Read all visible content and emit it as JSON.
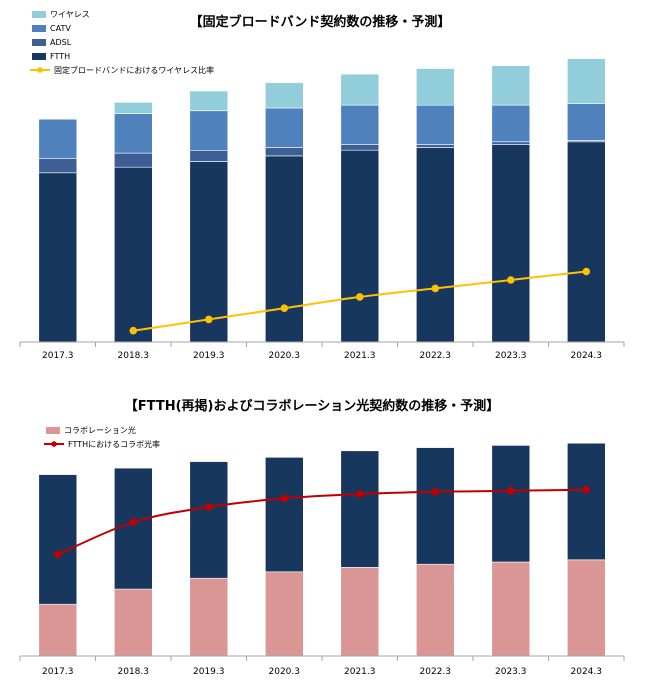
{
  "chart_data": [
    {
      "type": "bar",
      "stacked": true,
      "title": "【固定ブロードバンド契約数の推移・予測】",
      "categories": [
        "2017.3",
        "2018.3",
        "2019.3",
        "2020.3",
        "2021.3",
        "2022.3",
        "2023.3",
        "2024.3"
      ],
      "ylim": [
        0,
        100
      ],
      "y_axis_visible": false,
      "series": [
        {
          "name": "FTTH",
          "color": "#17375e",
          "values": [
            60,
            62,
            64,
            66,
            68,
            69,
            70,
            71
          ]
        },
        {
          "name": "ADSL",
          "color": "#3d5f96",
          "values": [
            5,
            5,
            4,
            3,
            2,
            1,
            1,
            0.5
          ]
        },
        {
          "name": "CATV",
          "color": "#4f81bd",
          "values": [
            14,
            14,
            14,
            14,
            14,
            14,
            13,
            13
          ]
        },
        {
          "name": "ワイヤレス",
          "color": "#92cddc",
          "values": [
            0,
            4,
            7,
            9,
            11,
            13,
            14,
            16
          ]
        }
      ],
      "line": {
        "name": "固定ブロードバンドにおけるワイヤレス比率",
        "color": "#ffc000",
        "values": [
          null,
          4,
          8,
          12,
          16,
          19,
          22,
          25
        ],
        "ylim": [
          0,
          100
        ]
      },
      "legend": [
        "ワイヤレス",
        "CATV",
        "ADSL",
        "FTTH",
        "固定ブロードバンドにおけるワイヤレス比率"
      ],
      "legend_position": "top-left"
    },
    {
      "type": "bar",
      "stacked": true,
      "title": "【FTTH(再掲)およびコラボレーション光契約数の推移・予測】",
      "categories": [
        "2017.3",
        "2018.3",
        "2019.3",
        "2020.3",
        "2021.3",
        "2022.3",
        "2023.3",
        "2024.3"
      ],
      "ylim": [
        0,
        100
      ],
      "y_axis_visible": false,
      "series": [
        {
          "name": "コラボレーション光",
          "color": "#da9694",
          "values": [
            24,
            31,
            36,
            39,
            41,
            42.5,
            43.5,
            44.5
          ]
        },
        {
          "name": "FTTH",
          "color": "#17375e",
          "values": [
            60,
            56,
            54,
            53,
            54,
            54,
            54,
            54
          ]
        }
      ],
      "line": {
        "name": "FTTHにおけるコラボ光率",
        "color": "#c00000",
        "values": [
          47,
          62,
          69,
          73,
          75,
          76,
          76.5,
          77
        ],
        "ylim": [
          0,
          100
        ]
      },
      "legend": [
        "コラボレーション光",
        "FTTHにおけるコラボ光率"
      ],
      "legend_position": "top-left"
    }
  ]
}
